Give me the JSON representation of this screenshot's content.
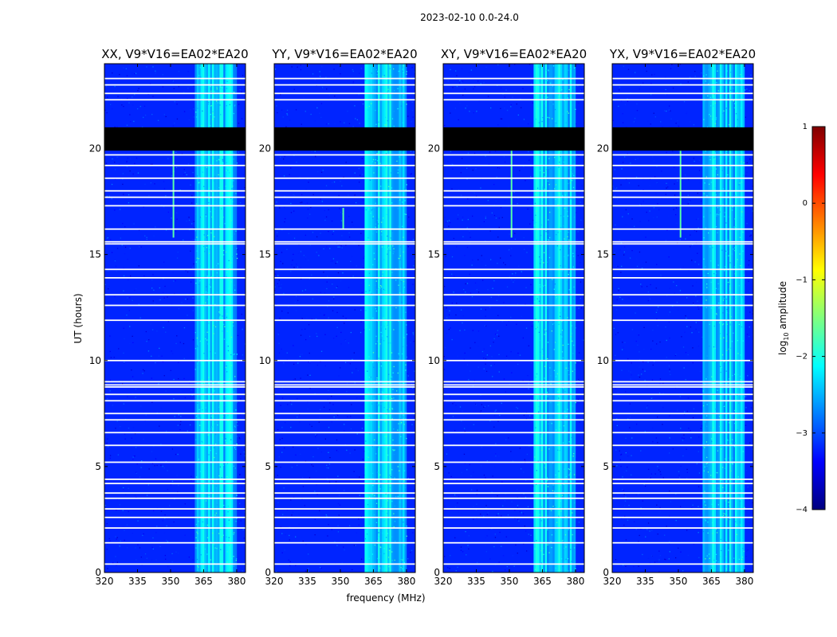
{
  "figure": {
    "suptitle": "2023-02-10 0.0-24.0",
    "xlabel": "frequency (MHz)",
    "ylabel": "UT (hours)",
    "colorbar_label_prefix": "log",
    "colorbar_label_sub": "10",
    "colorbar_label_suffix": " amplitude",
    "colormap": [
      "#00007f",
      "#0000ff",
      "#007fff",
      "#00ffff",
      "#7fff7f",
      "#ffff00",
      "#ff7f00",
      "#ff0000",
      "#7f0000"
    ],
    "masked_color": "#000000",
    "flag_color": "#ffffff"
  },
  "chart_data": {
    "type": "heatmap",
    "panels": [
      {
        "title": "XX, V9*V16=EA02*EA20",
        "show_ylabel": true
      },
      {
        "title": "YY, V9*V16=EA02*EA20",
        "show_xlabel": true
      },
      {
        "title": "XY, V9*V16=EA02*EA20"
      },
      {
        "title": "YX, V9*V16=EA02*EA20"
      }
    ],
    "xlim": [
      320,
      384
    ],
    "ylim": [
      0,
      24
    ],
    "xticks": [
      320,
      335,
      350,
      365,
      380
    ],
    "xtick_labels": [
      "320",
      "335",
      "350",
      "365",
      "380"
    ],
    "yticks": [
      0,
      5,
      10,
      15,
      20
    ],
    "ytick_labels": [
      "0",
      "5",
      "10",
      "15",
      "20"
    ],
    "colorbar": {
      "range": [
        -4,
        1
      ],
      "ticks": [
        1,
        0,
        -1,
        -2,
        -3,
        -4
      ],
      "tick_labels": [
        "1",
        "0",
        "−1",
        "−2",
        "−3",
        "−4"
      ]
    },
    "background_level": -3.2,
    "bright_band_mhz": [
      361,
      380
    ],
    "bright_band_level": -2.4,
    "masked_time_ranges_hours": [
      [
        19.9,
        21.0
      ]
    ],
    "flagged_times_hours": [
      0.4,
      1.4,
      2.1,
      2.6,
      3.0,
      3.5,
      3.75,
      4.2,
      4.4,
      5.2,
      6.0,
      6.6,
      7.2,
      7.5,
      8.1,
      8.4,
      8.75,
      8.85,
      9.0,
      10.0,
      11.9,
      12.6,
      13.1,
      13.9,
      14.3,
      15.5,
      15.6,
      16.2,
      17.3,
      17.7,
      18.0,
      18.6,
      19.2,
      19.7,
      22.3,
      22.6,
      23.0,
      23.3
    ],
    "rfi_spikes": [
      {
        "panel": 0,
        "freq_mhz": 351.3,
        "t_start": 15.8,
        "t_end": 19.9
      },
      {
        "panel": 1,
        "freq_mhz": 351.3,
        "t_start": 16.2,
        "t_end": 17.2
      },
      {
        "panel": 2,
        "freq_mhz": 351.0,
        "t_start": 15.8,
        "t_end": 19.9
      },
      {
        "panel": 3,
        "freq_mhz": 351.0,
        "t_start": 15.8,
        "t_end": 19.9
      }
    ]
  }
}
